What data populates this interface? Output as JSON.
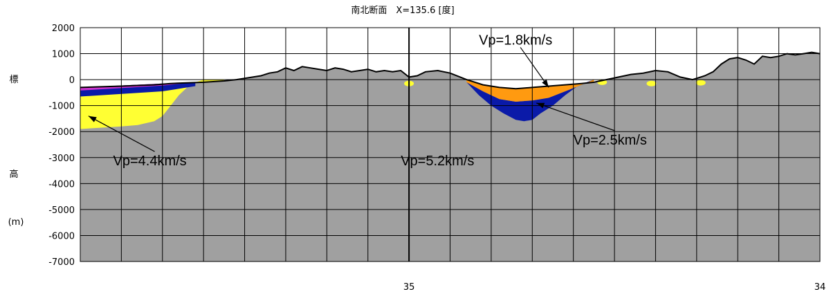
{
  "chart_data": {
    "type": "area",
    "title": "南北断面　X=135.6 [度]",
    "ylabel_chars": [
      "標",
      "高",
      "(m)"
    ],
    "xlabel": "",
    "ylim": [
      -7000,
      2000
    ],
    "yticks": [
      2000,
      1000,
      0,
      -1000,
      -2000,
      -3000,
      -4000,
      -5000,
      -6000,
      -7000
    ],
    "ytick_labels": [
      "2000",
      "1000",
      "0",
      "-1000",
      "-2000",
      "-3000",
      "-4000",
      "-5000",
      "-6000",
      "-7000"
    ],
    "xlim": [
      35.8,
      34.0
    ],
    "xticks": [
      35,
      34
    ],
    "xtick_labels": [
      "35",
      "34"
    ],
    "grid": true,
    "colors": {
      "vp52": "#a0a0a0",
      "vp44": "#ffff33",
      "vp25": "#0a1aa8",
      "vp18": "#ff9a10",
      "top": "#cc33cc",
      "outline": "#000000"
    },
    "layers": [
      {
        "name": "Vp=5.2km/s",
        "color": "#a0a0a0"
      },
      {
        "name": "Vp=4.4km/s",
        "color": "#ffff33"
      },
      {
        "name": "Vp=2.5km/s",
        "color": "#0a1aa8"
      },
      {
        "name": "Vp=1.8km/s",
        "color": "#ff9a10"
      }
    ],
    "surface": {
      "x": [
        35.8,
        35.7,
        35.62,
        35.58,
        35.5,
        35.45,
        35.42,
        35.38,
        35.36,
        35.34,
        35.32,
        35.3,
        35.28,
        35.26,
        35.24,
        35.22,
        35.2,
        35.18,
        35.16,
        35.14,
        35.12,
        35.1,
        35.08,
        35.06,
        35.04,
        35.02,
        35.0,
        34.98,
        34.96,
        34.93,
        34.9,
        34.86,
        34.82,
        34.78,
        34.74,
        34.7,
        34.66,
        34.62,
        34.58,
        34.55,
        34.52,
        34.49,
        34.46,
        34.43,
        34.4,
        34.37,
        34.34,
        34.31,
        34.28,
        34.26,
        34.24,
        34.22,
        34.2,
        34.18,
        34.16,
        34.14,
        34.12,
        34.1,
        34.08,
        34.06,
        34.04,
        34.02,
        34.0
      ],
      "y": [
        -300,
        -250,
        -200,
        -150,
        -100,
        -50,
        0,
        100,
        150,
        250,
        300,
        450,
        350,
        500,
        450,
        400,
        350,
        450,
        400,
        300,
        350,
        400,
        300,
        350,
        300,
        350,
        100,
        150,
        300,
        350,
        250,
        0,
        -200,
        -300,
        -350,
        -300,
        -250,
        -200,
        -150,
        -100,
        0,
        100,
        200,
        250,
        350,
        300,
        100,
        0,
        150,
        300,
        600,
        800,
        850,
        750,
        600,
        900,
        850,
        900,
        1000,
        950,
        1000,
        1050,
        1000
      ]
    },
    "bedrock_top": {
      "x": [
        35.8,
        35.75,
        35.7,
        35.66,
        35.62,
        35.6,
        35.58,
        35.56,
        35.54,
        35.52,
        35.5,
        35.45
      ],
      "y": [
        -1900,
        -1850,
        -1800,
        -1750,
        -1600,
        -1400,
        -1000,
        -600,
        -300,
        -100,
        0,
        0
      ]
    },
    "basin_top_25": {
      "x": [
        34.86,
        34.82,
        34.78,
        34.74,
        34.7,
        34.66,
        34.62,
        34.58,
        34.55
      ],
      "y": [
        -100,
        -450,
        -750,
        -850,
        -800,
        -700,
        -450,
        -200,
        0
      ]
    },
    "basin_bottom_25": {
      "x": [
        34.86,
        34.83,
        34.8,
        34.77,
        34.74,
        34.72,
        34.7,
        34.68,
        34.65,
        34.62,
        34.59,
        34.56,
        34.55
      ],
      "y": [
        -100,
        -600,
        -1000,
        -1300,
        -1550,
        -1600,
        -1550,
        -1300,
        -1000,
        -600,
        -250,
        -50,
        0
      ]
    },
    "annotations": [
      {
        "text": "Vp=4.4km/s",
        "x": 35.72,
        "y": -3300,
        "arrow_to": [
          35.78,
          -1400
        ]
      },
      {
        "text": "Vp=5.2km/s",
        "x": 35.02,
        "y": -3300
      },
      {
        "text": "Vp=1.8km/s",
        "x": 34.83,
        "y": 1350,
        "arrow_to": [
          34.66,
          -300
        ]
      },
      {
        "text": "Vp=2.5km/s",
        "x": 34.6,
        "y": -2500,
        "arrow_to": [
          34.69,
          -900
        ]
      }
    ]
  }
}
